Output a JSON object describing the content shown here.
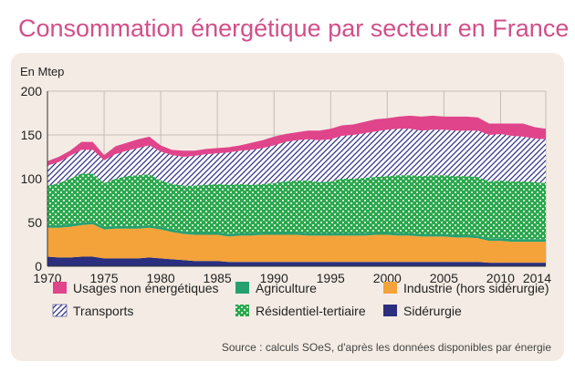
{
  "title": "Consommation énergétique par secteur en France",
  "chart_data": {
    "type": "area",
    "stacked": true,
    "title": "Consommation énergétique par secteur en France",
    "ylabel": "En Mtep",
    "xlabel": "",
    "ylim": [
      0,
      200
    ],
    "xlim": [
      1970,
      2014
    ],
    "y_ticks": [
      0,
      50,
      100,
      150,
      200
    ],
    "x_ticks": [
      1970,
      1975,
      1980,
      1985,
      1990,
      1995,
      2000,
      2005,
      2010,
      2014
    ],
    "grid": true,
    "legend_position": "bottom",
    "x": [
      1970,
      1971,
      1972,
      1973,
      1974,
      1975,
      1976,
      1977,
      1978,
      1979,
      1980,
      1981,
      1982,
      1983,
      1984,
      1985,
      1986,
      1987,
      1988,
      1989,
      1990,
      1991,
      1992,
      1993,
      1994,
      1995,
      1996,
      1997,
      1998,
      1999,
      2000,
      2001,
      2002,
      2003,
      2004,
      2005,
      2006,
      2007,
      2008,
      2009,
      2010,
      2011,
      2012,
      2013,
      2014
    ],
    "series": [
      {
        "name": "Sidérurgie",
        "color": "#2b2f7e",
        "pattern": "solid",
        "values": [
          11,
          10,
          10,
          11,
          11,
          9,
          9,
          9,
          9,
          10,
          9,
          8,
          7,
          6,
          6,
          6,
          5,
          5,
          5,
          5,
          5,
          5,
          5,
          5,
          5,
          5,
          5,
          5,
          5,
          5,
          5,
          5,
          5,
          5,
          5,
          5,
          5,
          5,
          5,
          4,
          4,
          4,
          4,
          4,
          4
        ]
      },
      {
        "name": "Industrie (hors sidérurgie)",
        "color": "#f3a33a",
        "pattern": "solid",
        "values": [
          33,
          34,
          35,
          36,
          37,
          33,
          34,
          34,
          34,
          34,
          33,
          31,
          30,
          30,
          30,
          30,
          29,
          30,
          30,
          31,
          31,
          31,
          31,
          30,
          30,
          30,
          30,
          30,
          30,
          31,
          31,
          30,
          30,
          29,
          29,
          29,
          28,
          28,
          27,
          25,
          25,
          24,
          24,
          24,
          24
        ]
      },
      {
        "name": "Agriculture",
        "color": "#27a06f",
        "pattern": "solid",
        "values": [
          3,
          3,
          3,
          3,
          3,
          3,
          3,
          3,
          3,
          3,
          3,
          3,
          3,
          3,
          3,
          3,
          3,
          3,
          3,
          3,
          3,
          3,
          3,
          3,
          3,
          3,
          3,
          3,
          3,
          3,
          3,
          3,
          3,
          3,
          3,
          3,
          3,
          3,
          3,
          3,
          3,
          3,
          3,
          3,
          3
        ]
      },
      {
        "name": "Résidentiel-tertiaire",
        "color": "#2aa84e",
        "pattern": "checker",
        "values": [
          45,
          48,
          52,
          56,
          55,
          50,
          54,
          57,
          58,
          58,
          53,
          52,
          52,
          53,
          54,
          55,
          56,
          56,
          55,
          55,
          56,
          58,
          59,
          60,
          58,
          59,
          62,
          62,
          63,
          63,
          64,
          66,
          66,
          66,
          67,
          67,
          67,
          67,
          67,
          65,
          66,
          66,
          66,
          65,
          64
        ]
      },
      {
        "name": "Transports",
        "color": "#33338a",
        "pattern": "hatch",
        "values": [
          23,
          24,
          26,
          27,
          27,
          26,
          28,
          29,
          31,
          33,
          33,
          33,
          33,
          34,
          35,
          35,
          37,
          38,
          40,
          41,
          43,
          45,
          46,
          47,
          48,
          48,
          49,
          50,
          51,
          52,
          53,
          53,
          53,
          52,
          52,
          52,
          52,
          52,
          53,
          53,
          53,
          52,
          51,
          50,
          50
        ]
      },
      {
        "name": "Usages non énergétiques",
        "color": "#e0458b",
        "pattern": "solid",
        "values": [
          5,
          6,
          6,
          9,
          9,
          6,
          9,
          9,
          10,
          10,
          7,
          6,
          7,
          6,
          6,
          6,
          6,
          6,
          8,
          9,
          10,
          9,
          9,
          10,
          11,
          12,
          12,
          12,
          13,
          14,
          13,
          14,
          15,
          16,
          16,
          15,
          16,
          16,
          15,
          13,
          12,
          14,
          15,
          13,
          12
        ]
      }
    ],
    "legend": [
      {
        "name": "Usages non énergétiques",
        "color": "#e0458b",
        "pattern": "solid"
      },
      {
        "name": "Agriculture",
        "color": "#27a06f",
        "pattern": "solid"
      },
      {
        "name": "Industrie (hors sidérurgie)",
        "color": "#f3a33a",
        "pattern": "solid"
      },
      {
        "name": "Transports",
        "color": "#33338a",
        "pattern": "hatch"
      },
      {
        "name": "Résidentiel-tertiaire",
        "color": "#2aa84e",
        "pattern": "checker"
      },
      {
        "name": "Sidérurgie",
        "color": "#2b2f7e",
        "pattern": "solid"
      }
    ]
  },
  "source": "Source : calculs SOeS, d'après les données disponibles par énergie"
}
